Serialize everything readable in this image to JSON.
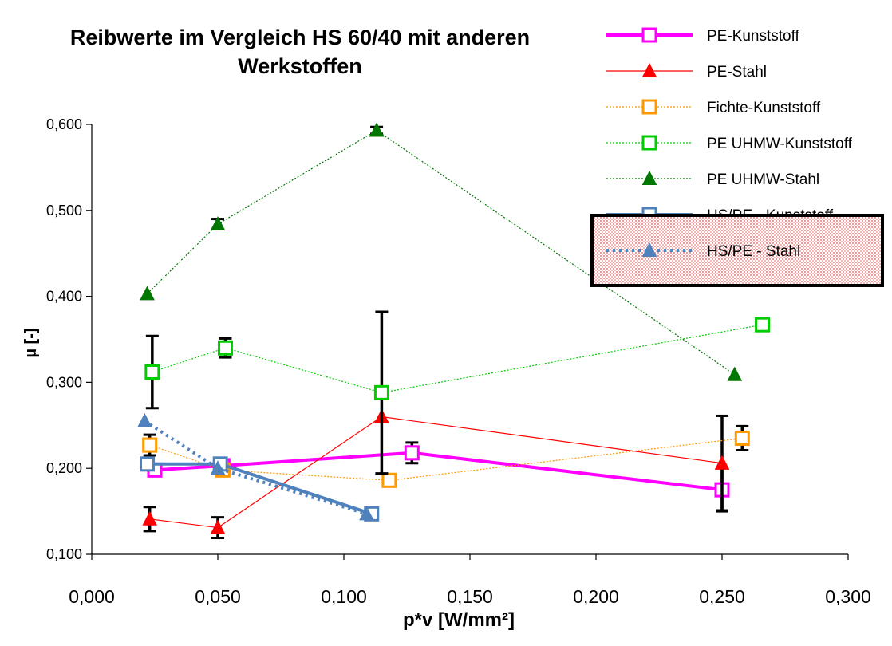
{
  "chart_data": {
    "type": "line",
    "title_lines": [
      "Reibwerte im Vergleich  HS 60/40 mit anderen",
      "Werkstoffen"
    ],
    "xlabel": "p*v [W/mm²]",
    "ylabel": "µ [-]",
    "xlim": [
      0,
      0.3
    ],
    "ylim": [
      0.1,
      0.6
    ],
    "x_ticks": [
      "0,000",
      "0,050",
      "0,100",
      "0,150",
      "0,200",
      "0,250",
      "0,300"
    ],
    "y_ticks": [
      "0,100",
      "0,200",
      "0,300",
      "0,400",
      "0,500",
      "0,600"
    ],
    "x_tick_values": [
      0,
      0.05,
      0.1,
      0.15,
      0.2,
      0.25,
      0.3
    ],
    "y_tick_values": [
      0.1,
      0.2,
      0.3,
      0.4,
      0.5,
      0.6
    ],
    "grid": false,
    "legend_position": "top-right",
    "series": [
      {
        "name": "PE-Kunststoff",
        "color": "#ff00ff",
        "marker": "square-open",
        "line_style": "solid",
        "line_weight": "thick",
        "x": [
          0.025,
          0.052,
          0.127,
          0.25
        ],
        "y": [
          0.198,
          0.203,
          0.218,
          0.175
        ],
        "err": [
          0,
          0,
          0.012,
          0.025
        ]
      },
      {
        "name": "PE-Stahl",
        "color": "#ff0000",
        "marker": "triangle-filled",
        "line_style": "solid",
        "line_weight": "thin",
        "x": [
          0.023,
          0.05,
          0.115,
          0.25
        ],
        "y": [
          0.141,
          0.131,
          0.26,
          0.206
        ],
        "err": [
          0.014,
          0.012,
          0,
          0.055
        ]
      },
      {
        "name": "Fichte-Kunststoff",
        "color": "#ff9900",
        "marker": "square-open",
        "line_style": "dotted",
        "line_weight": "thin",
        "x": [
          0.023,
          0.052,
          0.118,
          0.258
        ],
        "y": [
          0.227,
          0.198,
          0.186,
          0.235
        ],
        "err": [
          0.012,
          0,
          0,
          0.014
        ]
      },
      {
        "name": "PE UHMW-Kunststoff",
        "color": "#00cc00",
        "marker": "square-open",
        "line_style": "dotted",
        "line_weight": "thin",
        "x": [
          0.024,
          0.053,
          0.115,
          0.266
        ],
        "y": [
          0.312,
          0.34,
          0.288,
          0.367
        ],
        "err": [
          0.042,
          0.011,
          0.094,
          0.005
        ]
      },
      {
        "name": "PE UHMW-Stahl",
        "color": "#007700",
        "marker": "triangle-filled",
        "line_style": "dotted",
        "line_weight": "thin",
        "x": [
          0.022,
          0.05,
          0.113,
          0.255
        ],
        "y": [
          0.403,
          0.484,
          0.593,
          0.309
        ],
        "err": [
          0,
          0.006,
          0.004,
          0
        ]
      },
      {
        "name": "HS/PE - Kunststoff",
        "color": "#4f81bd",
        "marker": "square-open",
        "line_style": "solid",
        "line_weight": "thick",
        "x": [
          0.022,
          0.051,
          0.111
        ],
        "y": [
          0.205,
          0.205,
          0.147
        ],
        "err": [
          0,
          0,
          0
        ]
      },
      {
        "name": "HS/PE - Stahl",
        "color": "#4f81bd",
        "marker": "triangle-filled",
        "line_style": "dotted",
        "line_weight": "thick",
        "x": [
          0.021,
          0.05,
          0.109
        ],
        "y": [
          0.255,
          0.2,
          0.147
        ],
        "err": [
          0,
          0,
          0
        ]
      }
    ]
  }
}
